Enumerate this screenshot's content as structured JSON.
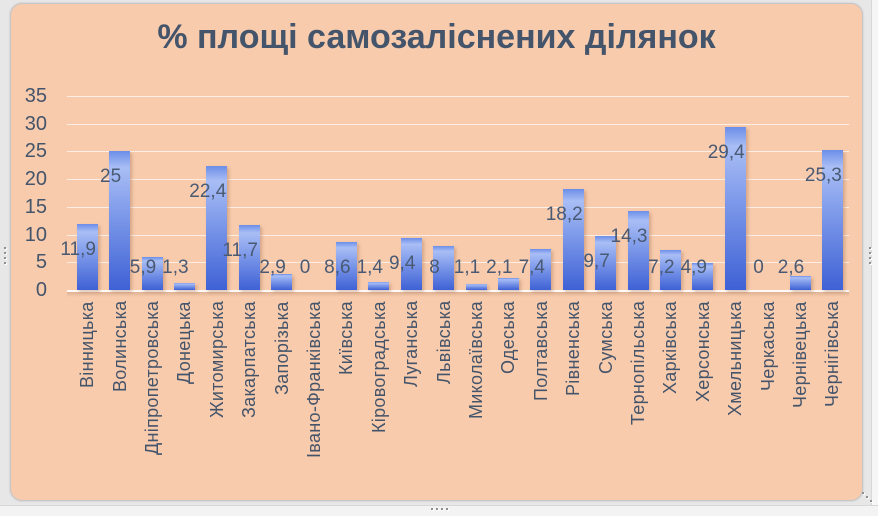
{
  "chart_data": {
    "type": "bar",
    "title": "% площі самозаліснених ділянок",
    "categories": [
      "Вінницька",
      "Волинська",
      "Дніпропетровська",
      "Донецька",
      "Житомирська",
      "Закарпатська",
      "Запорізька",
      "Івано-Франківська",
      "Київська",
      "Кіровоградська",
      "Луганська",
      "Львівська",
      "Миколаївська",
      "Одеська",
      "Полтавська",
      "Рівненська",
      "Сумська",
      "Тернопільська",
      "Харківська",
      "Херсонська",
      "Хмельницька",
      "Черкаська",
      "Чернівецька",
      "Чернігівська"
    ],
    "values": [
      11.9,
      25,
      5.9,
      1.3,
      22.4,
      11.7,
      2.9,
      0,
      8.6,
      1.4,
      9.4,
      8,
      1.1,
      2.1,
      7.4,
      18.2,
      9.7,
      14.3,
      7.2,
      4.9,
      29.4,
      0,
      2.6,
      25.3
    ],
    "value_labels": [
      "11,9",
      "25",
      "5,9",
      "1,3",
      "22,4",
      "11,7",
      "2,9",
      "0",
      "8,6",
      "1,4",
      "9,4",
      "8",
      "1,1",
      "2,1",
      "7,4",
      "18,2",
      "9,7",
      "14,3",
      "7,2",
      "4,9",
      "29,4",
      "0",
      "2,6",
      "25,3"
    ],
    "y_ticks": [
      0,
      5,
      10,
      15,
      20,
      25,
      30,
      35
    ],
    "ylim": [
      0,
      35
    ],
    "xlabel": "",
    "ylabel": "",
    "grid": true,
    "legend_position": "none",
    "colors": {
      "plot_background": "#F8CBAD",
      "bar_gradient": [
        "#6C8EE8",
        "#A9BEF5",
        "#7E9AEA",
        "#3E61D5"
      ],
      "text": "#44546A",
      "gridline": "#FFFFFF",
      "page_background": "#E7E7E7"
    }
  }
}
